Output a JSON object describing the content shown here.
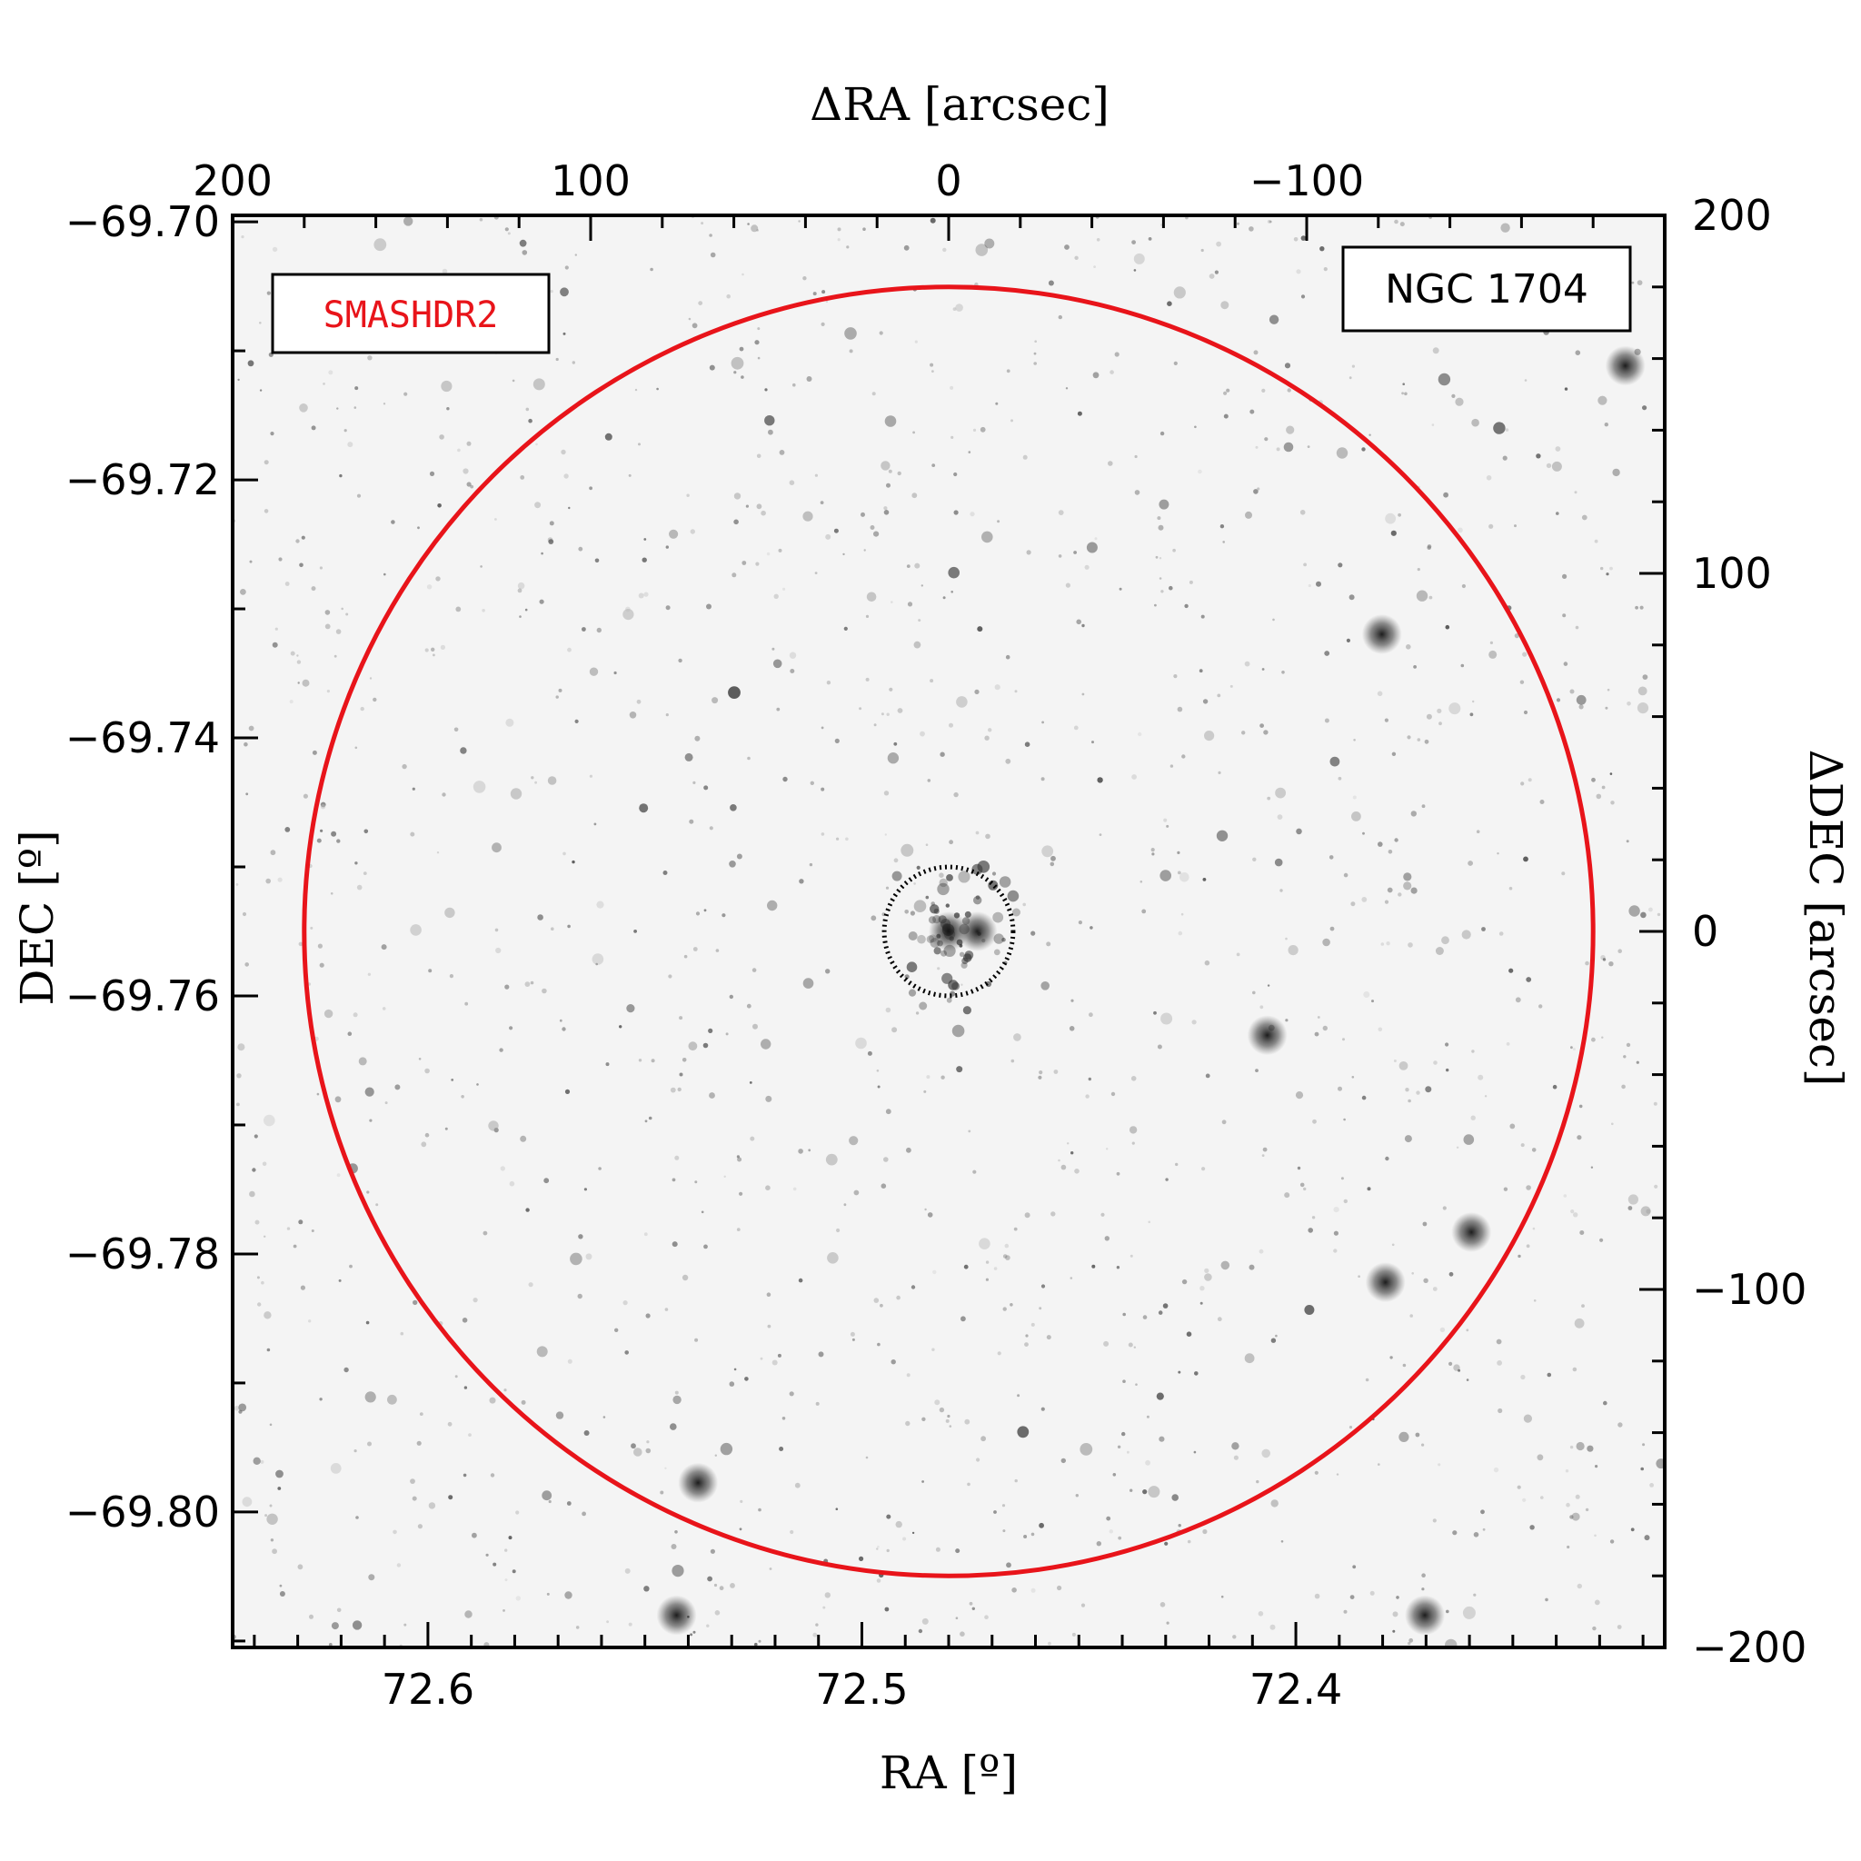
{
  "chart_data": {
    "type": "scatter",
    "title": "",
    "image": "greyscale sky image with dark stars on a light background",
    "xlabel": "RA [º]",
    "ylabel": "DEC [º]",
    "x2label": "ΔRA [arcsec]",
    "y2label": "ΔDEC [arcsec]",
    "xlim": [
      72.645,
      72.315
    ],
    "ylim": [
      -69.8105,
      -69.6995
    ],
    "x2lim": [
      200,
      -200
    ],
    "y2lim": [
      -200,
      200
    ],
    "x_ticks": [
      72.6,
      72.5,
      72.4
    ],
    "x_tick_labels": [
      "72.6",
      "72.5",
      "72.4"
    ],
    "y_ticks": [
      -69.7,
      -69.72,
      -69.74,
      -69.76,
      -69.78,
      -69.8
    ],
    "y_tick_labels": [
      "−69.70",
      "−69.72",
      "−69.74",
      "−69.76",
      "−69.78",
      "−69.80"
    ],
    "x2_ticks": [
      200,
      100,
      0,
      -100
    ],
    "x2_tick_labels": [
      "200",
      "100",
      "0",
      "−100"
    ],
    "y2_ticks": [
      200,
      100,
      0,
      -100,
      -200
    ],
    "y2_tick_labels": [
      "200",
      "100",
      "0",
      "−100",
      "−200"
    ],
    "cluster_label": "NGC 1704",
    "survey_label": "SMASHDR2",
    "circles": [
      {
        "name": "survey field",
        "center_arcsec": [
          0,
          0
        ],
        "radius_arcsec": 180,
        "color": "#e8141a",
        "style": "solid"
      },
      {
        "name": "cluster radius",
        "center_arcsec": [
          0,
          0
        ],
        "radius_arcsec": 18,
        "color": "#000000",
        "style": "dotted"
      }
    ],
    "bright_stars_arcsec": [
      [
        -189,
        158
      ],
      [
        70,
        -154
      ],
      [
        -122,
        -98
      ],
      [
        -121,
        83
      ],
      [
        76,
        -191
      ],
      [
        -146,
        -84
      ],
      [
        -133,
        -191
      ],
      [
        -89,
        -29
      ],
      [
        0,
        0
      ],
      [
        -8,
        0
      ]
    ],
    "legend": "none",
    "grid": false
  }
}
